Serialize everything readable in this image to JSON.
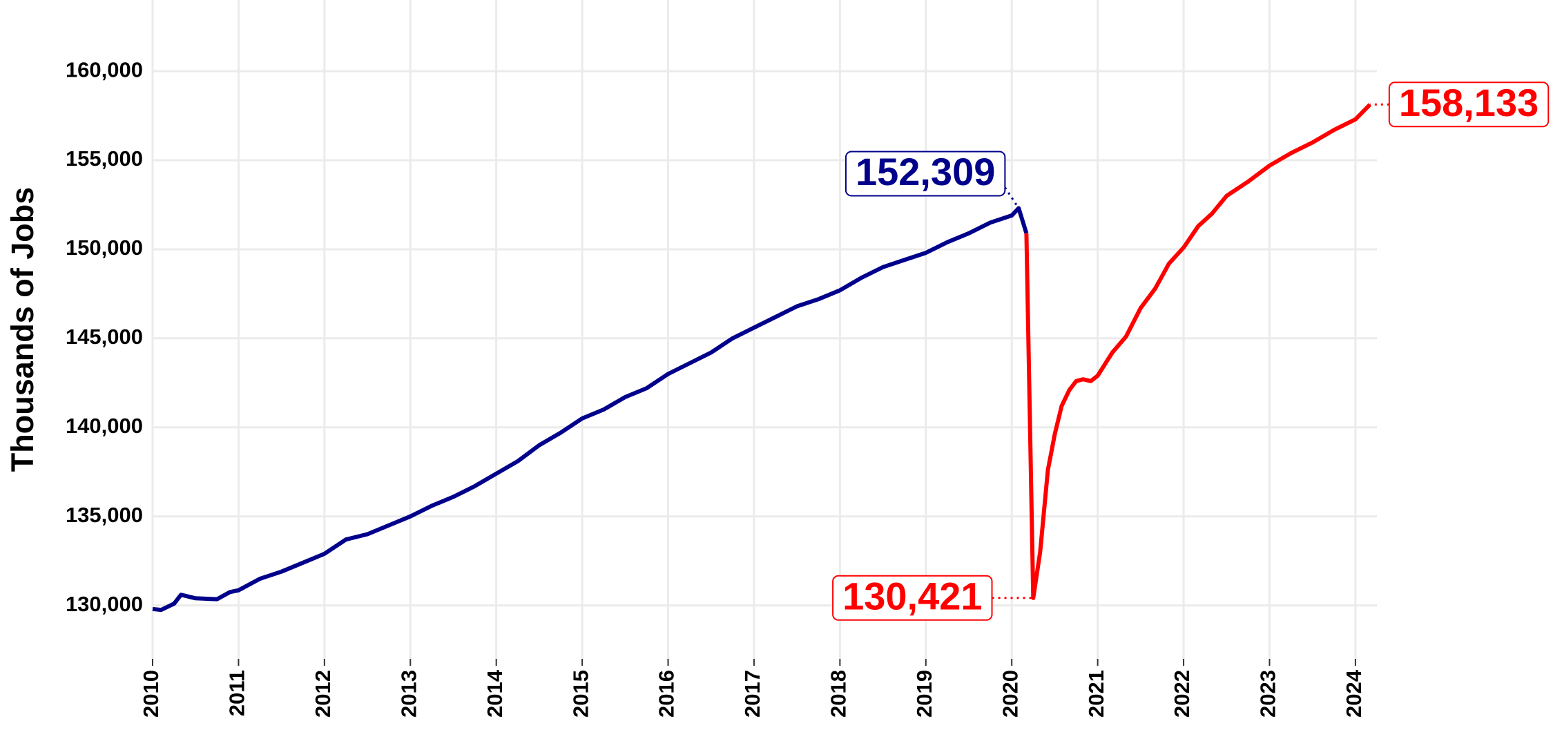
{
  "chart_data": {
    "type": "line",
    "ylabel": "Thousands of Jobs",
    "xlim": [
      2010,
      2024.25
    ],
    "xticks": [
      2010,
      2011,
      2012,
      2013,
      2014,
      2015,
      2016,
      2017,
      2018,
      2019,
      2020,
      2021,
      2022,
      2023,
      2024
    ],
    "ylim": [
      127000,
      164000
    ],
    "yticks": [
      {
        "value": 130000,
        "label": "130,000"
      },
      {
        "value": 135000,
        "label": "135,000"
      },
      {
        "value": 140000,
        "label": "140,000"
      },
      {
        "value": 145000,
        "label": "145,000"
      },
      {
        "value": 150000,
        "label": "150,000"
      },
      {
        "value": 155000,
        "label": "155,000"
      },
      {
        "value": 160000,
        "label": "160,000"
      }
    ],
    "grid": true,
    "series": [
      {
        "color": "#00008b",
        "x": [
          2010.0,
          2010.1,
          2010.25,
          2010.33,
          2010.5,
          2010.75,
          2010.9,
          2011.0,
          2011.25,
          2011.5,
          2011.75,
          2012.0,
          2012.25,
          2012.5,
          2012.75,
          2013.0,
          2013.25,
          2013.5,
          2013.75,
          2014.0,
          2014.25,
          2014.5,
          2014.75,
          2015.0,
          2015.25,
          2015.5,
          2015.75,
          2016.0,
          2016.25,
          2016.5,
          2016.75,
          2017.0,
          2017.25,
          2017.5,
          2017.75,
          2018.0,
          2018.25,
          2018.5,
          2018.75,
          2019.0,
          2019.25,
          2019.5,
          2019.75,
          2020.0,
          2020.08,
          2020.17
        ],
        "values": [
          129800,
          129750,
          130100,
          130600,
          130400,
          130350,
          130750,
          130850,
          131500,
          131900,
          132400,
          132900,
          133700,
          134000,
          134500,
          135000,
          135600,
          136100,
          136700,
          137400,
          138100,
          139000,
          139700,
          140500,
          141000,
          141700,
          142200,
          143000,
          143600,
          144200,
          145000,
          145600,
          146200,
          146800,
          147200,
          147700,
          148400,
          149000,
          149400,
          149800,
          150400,
          150900,
          151500,
          151900,
          152309,
          150900
        ]
      },
      {
        "color": "#ff0000",
        "x": [
          2020.17,
          2020.25,
          2020.33,
          2020.42,
          2020.5,
          2020.58,
          2020.67,
          2020.75,
          2020.83,
          2020.92,
          2021.0,
          2021.17,
          2021.33,
          2021.5,
          2021.67,
          2021.83,
          2022.0,
          2022.17,
          2022.33,
          2022.5,
          2022.75,
          2023.0,
          2023.25,
          2023.5,
          2023.75,
          2024.0,
          2024.17
        ],
        "values": [
          150900,
          130421,
          133000,
          137600,
          139600,
          141200,
          142100,
          142600,
          142700,
          142600,
          142900,
          144200,
          145100,
          146700,
          147800,
          149200,
          150100,
          151300,
          152000,
          153000,
          153800,
          154700,
          155400,
          156000,
          156700,
          157300,
          158133
        ]
      }
    ],
    "annotations": [
      {
        "label": "152,309",
        "x": 2020.08,
        "y": 152309,
        "color": "#00008b"
      },
      {
        "label": "130,421",
        "x": 2020.25,
        "y": 130421,
        "color": "#ff0000"
      },
      {
        "label": "158,133",
        "x": 2024.17,
        "y": 158133,
        "color": "#ff0000"
      }
    ]
  }
}
